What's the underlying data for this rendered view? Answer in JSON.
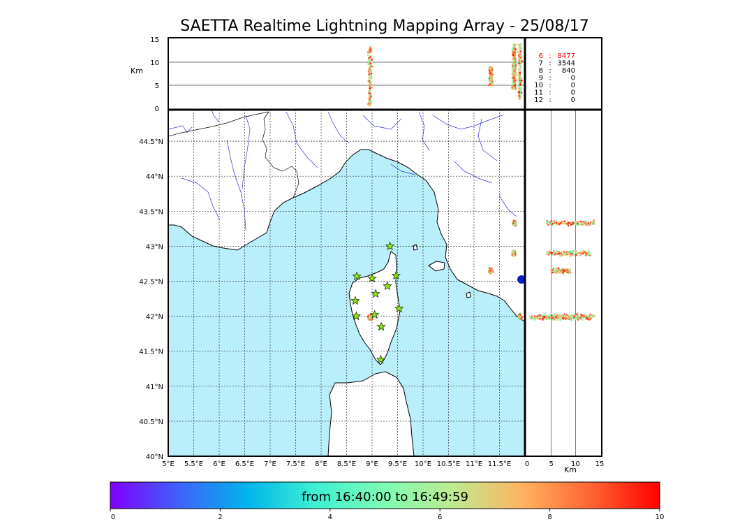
{
  "title": "SAETTA Realtime Lightning Mapping Array - 25/08/17",
  "altitude_panel": {
    "axis_label": "Km",
    "ticks": [
      "15",
      "10",
      "5",
      "0"
    ],
    "tick_values": [
      15,
      10,
      5,
      0
    ]
  },
  "side_panel": {
    "axis_label": "Km",
    "ticks": [
      "0",
      "5",
      "10",
      "15"
    ],
    "tick_values": [
      0,
      5,
      10,
      15
    ]
  },
  "station_counts": [
    {
      "station": "6",
      "count": "8477",
      "highlight": true
    },
    {
      "station": "7",
      "count": "3544",
      "highlight": false
    },
    {
      "station": "8",
      "count": "840",
      "highlight": false
    },
    {
      "station": "9",
      "count": "0",
      "highlight": false
    },
    {
      "station": "10",
      "count": "0",
      "highlight": false
    },
    {
      "station": "11",
      "count": "0",
      "highlight": false
    },
    {
      "station": "12",
      "count": "0",
      "highlight": false
    }
  ],
  "count_separator": ":",
  "map": {
    "lon_labels": [
      "5°E",
      "5.5°E",
      "6°E",
      "6.5°E",
      "7°E",
      "7.5°E",
      "8°E",
      "8.5°E",
      "9°E",
      "9.5°E",
      "10°E",
      "10.5°E",
      "11°E",
      "11.5°E"
    ],
    "lon_values": [
      5,
      5.5,
      6,
      6.5,
      7,
      7.5,
      8,
      8.5,
      9,
      9.5,
      10,
      10.5,
      11,
      11.5
    ],
    "lat_labels": [
      "44.5°N",
      "44°N",
      "43.5°N",
      "43°N",
      "42.5°N",
      "42°N",
      "41.5°N",
      "41°N",
      "40.5°N",
      "40°N"
    ],
    "lat_values": [
      44.5,
      44,
      43.5,
      43,
      42.5,
      42,
      41.5,
      41,
      40.5,
      40
    ],
    "lon_range": [
      5,
      12
    ],
    "lat_range": [
      40,
      44.95
    ],
    "colors": {
      "sea": "#b9eefb",
      "land": "#ffffff",
      "coast": "#000000",
      "rivers": "#3333dd",
      "stations": "#8ee21a"
    }
  },
  "stations": [
    {
      "lon": 9.35,
      "lat": 43.0
    },
    {
      "lon": 8.7,
      "lat": 42.57
    },
    {
      "lon": 9.0,
      "lat": 42.54
    },
    {
      "lon": 9.47,
      "lat": 42.58
    },
    {
      "lon": 9.3,
      "lat": 42.43
    },
    {
      "lon": 9.07,
      "lat": 42.32
    },
    {
      "lon": 8.67,
      "lat": 42.22
    },
    {
      "lon": 9.53,
      "lat": 42.11
    },
    {
      "lon": 8.69,
      "lat": 42.0
    },
    {
      "lon": 9.05,
      "lat": 42.02
    },
    {
      "lon": 9.18,
      "lat": 41.85
    },
    {
      "lon": 9.17,
      "lat": 41.38
    }
  ],
  "lightning_clusters": [
    {
      "name": "inland-corsica",
      "lon": 8.96,
      "lat": 41.98,
      "alt_min": 0.5,
      "alt_max": 13.5
    },
    {
      "name": "east-sea-north",
      "lon": 11.79,
      "lat": 43.33,
      "alt_min": 4,
      "alt_max": 14
    },
    {
      "name": "east-sea-mid",
      "lon": 11.78,
      "lat": 42.9,
      "alt_min": 4,
      "alt_max": 13
    },
    {
      "name": "east-sea-small",
      "lon": 11.33,
      "lat": 42.65,
      "alt_min": 5,
      "alt_max": 9
    },
    {
      "name": "east-sea-south",
      "lon": 11.9,
      "lat": 42.0,
      "alt_min": 2,
      "alt_max": 14
    }
  ],
  "colorbar": {
    "label": "from 16:40:00 to 16:49:59",
    "ticks": [
      "0",
      "2",
      "4",
      "6",
      "8",
      "10"
    ],
    "tick_values": [
      0,
      2,
      4,
      6,
      8,
      10
    ],
    "colors": [
      "#7f00ff",
      "#3f62f9",
      "#00b5eb",
      "#3ff0d2",
      "#7ffcb4",
      "#bfea8f",
      "#ffb360",
      "#ff6433",
      "#ff0000"
    ]
  }
}
